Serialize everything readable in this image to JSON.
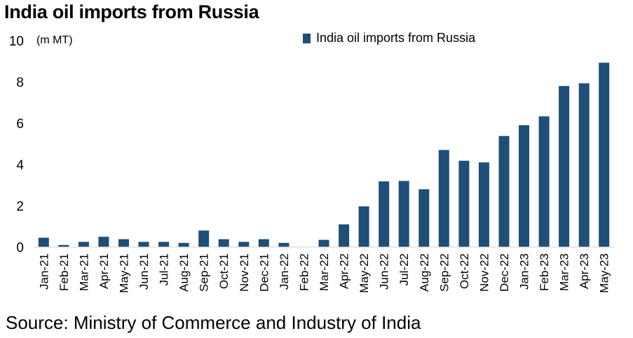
{
  "chart_data": {
    "type": "bar",
    "title": "India oil imports from Russia",
    "unit_label": "(m MT)",
    "xlabel": "",
    "ylabel": "",
    "ylim": [
      0,
      10
    ],
    "yticks": [
      0,
      2,
      4,
      6,
      8,
      10
    ],
    "grid": false,
    "legend_position": "top",
    "bar_color": "#1f4e79",
    "categories": [
      "Jan-21",
      "Feb-21",
      "Mar-21",
      "Apr-21",
      "May-21",
      "Jun-21",
      "Jul-21",
      "Aug-21",
      "Sep-21",
      "Oct-21",
      "Nov-21",
      "Dec-21",
      "Jan-22",
      "Feb-22",
      "Mar-22",
      "Apr-22",
      "May-22",
      "Jun-22",
      "Jul-22",
      "Aug-22",
      "Sep-22",
      "Oct-22",
      "Nov-22",
      "Dec-22",
      "Jan-23",
      "Feb-23",
      "Mar-23",
      "Apr-23",
      "May-23"
    ],
    "series": [
      {
        "name": "India oil imports from Russia",
        "values": [
          0.45,
          0.1,
          0.25,
          0.5,
          0.38,
          0.25,
          0.25,
          0.2,
          0.8,
          0.38,
          0.25,
          0.38,
          0.2,
          0.0,
          0.35,
          1.1,
          1.97,
          3.18,
          3.2,
          2.8,
          4.7,
          4.18,
          4.1,
          5.38,
          5.9,
          6.33,
          7.8,
          7.93,
          8.93
        ]
      }
    ]
  },
  "source": "Source: Ministry of Commerce and Industry of India"
}
